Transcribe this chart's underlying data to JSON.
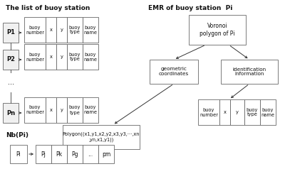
{
  "bg_color": "#ffffff",
  "title_left": "The list of buoy station",
  "title_right": "EMR of buoy station  Pi",
  "title_bottom": "Nb(Pi)",
  "left_labels": [
    "P1",
    "P2",
    "...",
    "Pn"
  ],
  "row_cells": [
    "buoy\nnumber",
    "x",
    "y",
    "buoy\ntype",
    "buoy\nname"
  ],
  "polygon_text": "Polygon((x1,y1,x2,y2,x3,y3,⋯,xn\n,yn,x1,y1))",
  "voronoi_text": "Voronoi\npolygon of Pi",
  "geo_text": "geometric\ncoordinates",
  "id_text": "identification\ninformation",
  "emr_row_cells": [
    "buoy\nnumber",
    "x",
    "y",
    "buoy\ntype",
    "buoy\nname"
  ],
  "nb_cells": [
    "Pi",
    "Pj",
    "Pk",
    "Pg",
    "...",
    "pm"
  ],
  "box_color": "#f0f0f0",
  "border_color": "#666666",
  "text_color": "#111111",
  "arrow_color": "#333333"
}
